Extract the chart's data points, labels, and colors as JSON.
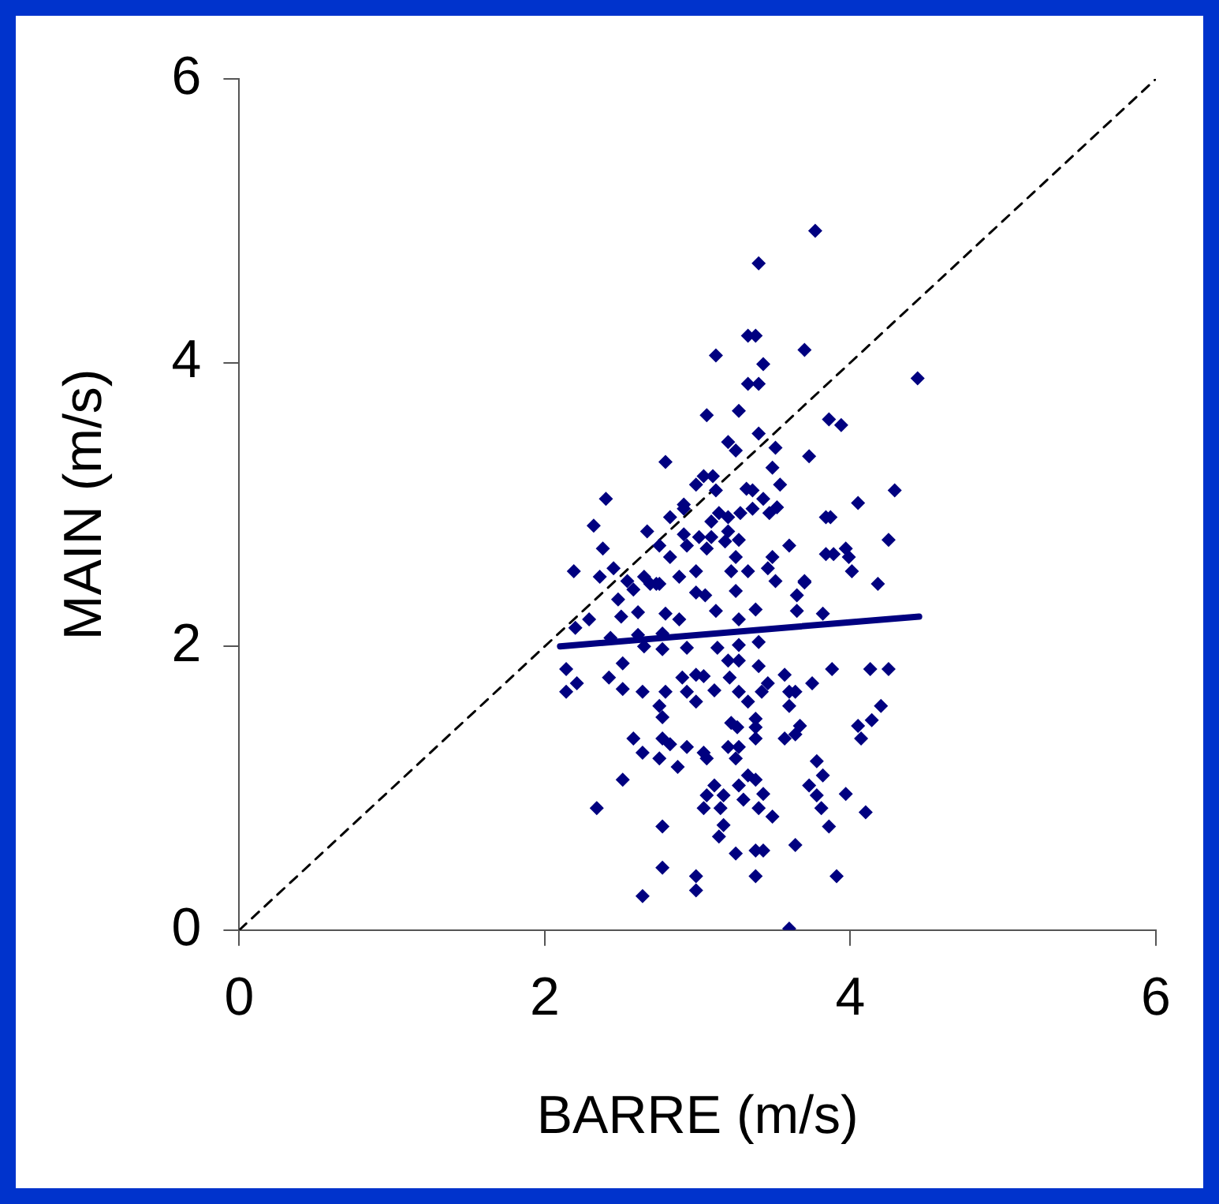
{
  "chart_data": {
    "type": "scatter",
    "xlabel": "BARRE (m/s)",
    "ylabel": "MAIN (m/s)",
    "xlim": [
      0,
      6
    ],
    "ylim": [
      0,
      6
    ],
    "xticks": [
      0,
      2,
      4,
      6
    ],
    "yticks": [
      0,
      2,
      4,
      6
    ],
    "grid": false,
    "legend": false,
    "marker": "diamond",
    "series": [
      {
        "type": "scatter",
        "color": "#000080",
        "x": [
          3.77,
          3.4,
          3.33,
          3.38,
          3.12,
          3.7,
          3.43,
          3.33,
          3.4,
          4.44,
          3.06,
          3.27,
          3.86,
          3.94,
          3.4,
          3.2,
          3.25,
          3.51,
          2.79,
          3.73,
          3.49,
          3.04,
          3.1,
          2.99,
          3.12,
          3.32,
          3.36,
          3.54,
          4.29,
          2.4,
          3.43,
          4.05,
          2.91,
          2.91,
          3.36,
          2.32,
          2.82,
          3.14,
          3.2,
          3.09,
          3.28,
          3.47,
          3.52,
          3.84,
          3.87,
          2.67,
          2.91,
          3.01,
          3.09,
          3.2,
          3.27,
          3.18,
          3.6,
          4.25,
          2.38,
          2.75,
          2.93,
          3.06,
          3.84,
          3.89,
          3.97,
          3.99,
          2.82,
          3.25,
          3.49,
          2.19,
          2.36,
          2.45,
          2.54,
          2.65,
          2.69,
          2.75,
          2.88,
          2.99,
          3.22,
          3.33,
          3.46,
          3.51,
          3.7,
          4.01,
          4.18,
          2.48,
          2.58,
          2.73,
          2.99,
          3.05,
          3.25,
          3.38,
          3.65,
          3.7,
          2.5,
          2.61,
          2.79,
          2.88,
          3.12,
          3.27,
          3.65,
          3.82,
          2.2,
          2.29,
          2.43,
          2.61,
          2.65,
          2.77,
          2.93,
          3.27,
          3.4,
          2.14,
          2.21,
          2.14,
          2.42,
          2.51,
          2.51,
          2.64,
          2.77,
          2.79,
          2.9,
          2.99,
          3.04,
          2.93,
          2.99,
          3.13,
          3.2,
          3.27,
          3.11,
          3.21,
          3.27,
          3.4,
          3.33,
          3.42,
          3.46,
          3.57,
          3.6,
          3.64,
          3.6,
          3.75,
          3.88,
          4.13,
          4.25,
          4.2,
          4.14,
          4.05,
          4.07,
          2.75,
          2.77,
          2.58,
          2.64,
          2.75,
          2.77,
          2.82,
          2.93,
          2.87,
          3.04,
          3.06,
          3.22,
          3.26,
          3.2,
          3.27,
          3.25,
          3.38,
          3.38,
          3.38,
          3.57,
          3.64,
          3.67,
          2.51,
          2.34,
          3.11,
          3.06,
          3.04,
          3.15,
          3.17,
          3.27,
          3.33,
          3.38,
          3.3,
          3.43,
          3.4,
          3.49,
          3.17,
          3.14,
          3.73,
          3.78,
          3.82,
          3.78,
          3.81,
          3.97,
          4.1,
          3.86,
          2.77,
          3.25,
          3.38,
          3.43,
          3.64,
          2.77,
          2.99,
          3.38,
          3.91,
          2.64,
          2.99,
          3.6
        ],
        "values": [
          4.93,
          4.7,
          4.19,
          4.19,
          4.05,
          4.09,
          3.99,
          3.85,
          3.85,
          3.89,
          3.63,
          3.66,
          3.6,
          3.56,
          3.5,
          3.44,
          3.38,
          3.4,
          3.3,
          3.34,
          3.26,
          3.2,
          3.2,
          3.14,
          3.1,
          3.11,
          3.1,
          3.14,
          3.1,
          3.04,
          3.04,
          3.01,
          3.0,
          2.97,
          2.97,
          2.85,
          2.91,
          2.94,
          2.91,
          2.88,
          2.94,
          2.94,
          2.98,
          2.91,
          2.91,
          2.81,
          2.79,
          2.77,
          2.77,
          2.81,
          2.75,
          2.74,
          2.71,
          2.75,
          2.69,
          2.71,
          2.71,
          2.69,
          2.65,
          2.65,
          2.69,
          2.63,
          2.63,
          2.63,
          2.63,
          2.53,
          2.49,
          2.55,
          2.46,
          2.49,
          2.44,
          2.44,
          2.49,
          2.53,
          2.53,
          2.53,
          2.55,
          2.46,
          2.46,
          2.53,
          2.44,
          2.33,
          2.4,
          2.44,
          2.38,
          2.36,
          2.39,
          2.26,
          2.36,
          2.45,
          2.21,
          2.24,
          2.23,
          2.19,
          2.25,
          2.19,
          2.25,
          2.23,
          2.13,
          2.19,
          2.06,
          2.08,
          2.0,
          2.09,
          1.99,
          2.01,
          2.03,
          1.84,
          1.74,
          1.68,
          1.78,
          1.88,
          1.7,
          1.68,
          1.98,
          1.68,
          1.78,
          1.8,
          1.79,
          1.68,
          1.61,
          1.99,
          1.9,
          1.9,
          1.69,
          1.78,
          1.68,
          1.86,
          1.61,
          1.68,
          1.74,
          1.8,
          1.68,
          1.68,
          1.58,
          1.74,
          1.84,
          1.84,
          1.84,
          1.58,
          1.48,
          1.44,
          1.35,
          1.58,
          1.5,
          1.35,
          1.25,
          1.21,
          1.35,
          1.31,
          1.29,
          1.15,
          1.25,
          1.21,
          1.46,
          1.43,
          1.29,
          1.29,
          1.21,
          1.49,
          1.43,
          1.35,
          1.35,
          1.38,
          1.44,
          1.06,
          0.86,
          1.02,
          0.95,
          0.86,
          0.86,
          0.95,
          1.02,
          1.09,
          1.06,
          0.92,
          0.96,
          0.86,
          0.8,
          0.74,
          0.66,
          1.02,
          1.19,
          1.09,
          0.95,
          0.86,
          0.96,
          0.83,
          0.73,
          0.73,
          0.54,
          0.56,
          0.56,
          0.6,
          0.44,
          0.38,
          0.38,
          0.38,
          0.24,
          0.28,
          0.01
        ]
      },
      {
        "type": "line",
        "color": "#000080",
        "marker": "none",
        "line_style": "solid",
        "x": [
          2.1,
          4.45
        ],
        "values": [
          2.0,
          2.21
        ]
      },
      {
        "type": "line",
        "color": "#000000",
        "marker": "none",
        "line_style": "dashed",
        "x": [
          0,
          6
        ],
        "values": [
          0,
          6
        ]
      }
    ]
  }
}
